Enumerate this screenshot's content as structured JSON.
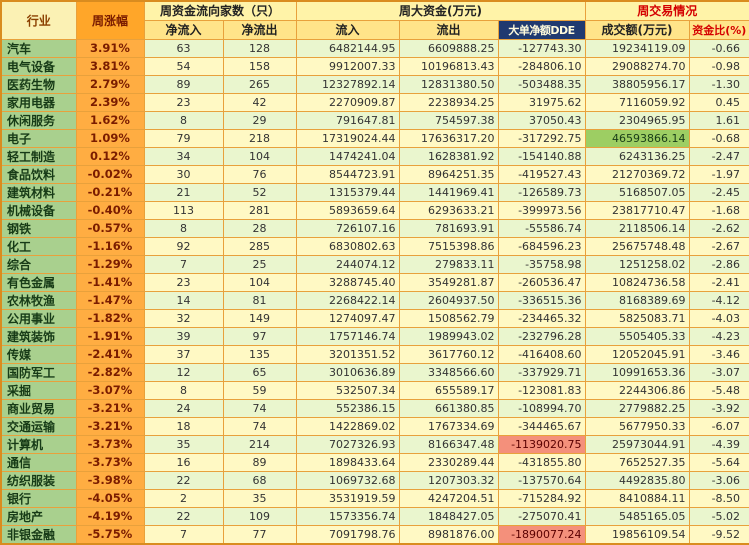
{
  "table": {
    "headers": {
      "industry": "行业",
      "weekly_change": "周涨幅",
      "flow_count_group": "周资金流向家数（只）",
      "net_inflow": "净流入",
      "net_outflow": "净流出",
      "big_money_group": "周大资金(万元)",
      "inflow": "流入",
      "outflow": "流出",
      "dde": "大单净额DDE",
      "trading_group": "周交易情况",
      "turnover": "成交额(万元)",
      "capital_ratio": "资金比(%)"
    },
    "colors": {
      "grid_border": "#E8A13C",
      "weekly_change_column_bg": "#FFAD42",
      "industry_column_bg": "#A9D08E",
      "row_alt_green": "#EAF6CE",
      "row_alt_yellow": "#FFF9C4",
      "dde_header_bg": "#203A70",
      "dde_negative_highlight_bg": "#F4907B",
      "max_turnover_highlight_bg": "#9DCE63"
    },
    "rows": [
      {
        "industry": "汽车",
        "change": "3.91%",
        "net_in": "63",
        "net_out": "128",
        "inflow": "6482144.95",
        "outflow": "6609888.25",
        "dde": "-127743.30",
        "turnover": "19234119.09",
        "ratio": "-0.66"
      },
      {
        "industry": "电气设备",
        "change": "3.81%",
        "net_in": "54",
        "net_out": "158",
        "inflow": "9912007.33",
        "outflow": "10196813.43",
        "dde": "-284806.10",
        "turnover": "29088274.70",
        "ratio": "-0.98"
      },
      {
        "industry": "医药生物",
        "change": "2.79%",
        "net_in": "89",
        "net_out": "265",
        "inflow": "12327892.14",
        "outflow": "12831380.50",
        "dde": "-503488.35",
        "turnover": "38805956.17",
        "ratio": "-1.30"
      },
      {
        "industry": "家用电器",
        "change": "2.39%",
        "net_in": "23",
        "net_out": "42",
        "inflow": "2270909.87",
        "outflow": "2238934.25",
        "dde": "31975.62",
        "turnover": "7116059.92",
        "ratio": "0.45"
      },
      {
        "industry": "休闲服务",
        "change": "1.62%",
        "net_in": "8",
        "net_out": "29",
        "inflow": "791647.81",
        "outflow": "754597.38",
        "dde": "37050.43",
        "turnover": "2304965.95",
        "ratio": "1.61"
      },
      {
        "industry": "电子",
        "change": "1.09%",
        "net_in": "79",
        "net_out": "218",
        "inflow": "17319024.44",
        "outflow": "17636317.20",
        "dde": "-317292.75",
        "turnover": "46593866.14",
        "ratio": "-0.68"
      },
      {
        "industry": "轻工制造",
        "change": "0.12%",
        "net_in": "34",
        "net_out": "104",
        "inflow": "1474241.04",
        "outflow": "1628381.92",
        "dde": "-154140.88",
        "turnover": "6243136.25",
        "ratio": "-2.47"
      },
      {
        "industry": "食品饮料",
        "change": "-0.02%",
        "net_in": "30",
        "net_out": "76",
        "inflow": "8544723.91",
        "outflow": "8964251.35",
        "dde": "-419527.43",
        "turnover": "21270369.72",
        "ratio": "-1.97"
      },
      {
        "industry": "建筑材料",
        "change": "-0.21%",
        "net_in": "21",
        "net_out": "52",
        "inflow": "1315379.44",
        "outflow": "1441969.41",
        "dde": "-126589.73",
        "turnover": "5168507.05",
        "ratio": "-2.45"
      },
      {
        "industry": "机械设备",
        "change": "-0.40%",
        "net_in": "113",
        "net_out": "281",
        "inflow": "5893659.64",
        "outflow": "6293633.21",
        "dde": "-399973.56",
        "turnover": "23817710.47",
        "ratio": "-1.68"
      },
      {
        "industry": "钢铁",
        "change": "-0.57%",
        "net_in": "8",
        "net_out": "28",
        "inflow": "726107.16",
        "outflow": "781693.91",
        "dde": "-55586.74",
        "turnover": "2118506.14",
        "ratio": "-2.62"
      },
      {
        "industry": "化工",
        "change": "-1.16%",
        "net_in": "92",
        "net_out": "285",
        "inflow": "6830802.63",
        "outflow": "7515398.86",
        "dde": "-684596.23",
        "turnover": "25675748.48",
        "ratio": "-2.67"
      },
      {
        "industry": "综合",
        "change": "-1.29%",
        "net_in": "7",
        "net_out": "25",
        "inflow": "244074.12",
        "outflow": "279833.11",
        "dde": "-35758.98",
        "turnover": "1251258.02",
        "ratio": "-2.86"
      },
      {
        "industry": "有色金属",
        "change": "-1.41%",
        "net_in": "23",
        "net_out": "104",
        "inflow": "3288745.40",
        "outflow": "3549281.87",
        "dde": "-260536.47",
        "turnover": "10824736.58",
        "ratio": "-2.41"
      },
      {
        "industry": "农林牧渔",
        "change": "-1.47%",
        "net_in": "14",
        "net_out": "81",
        "inflow": "2268422.14",
        "outflow": "2604937.50",
        "dde": "-336515.36",
        "turnover": "8168389.69",
        "ratio": "-4.12"
      },
      {
        "industry": "公用事业",
        "change": "-1.82%",
        "net_in": "32",
        "net_out": "149",
        "inflow": "1274097.47",
        "outflow": "1508562.79",
        "dde": "-234465.32",
        "turnover": "5825083.71",
        "ratio": "-4.03"
      },
      {
        "industry": "建筑装饰",
        "change": "-1.91%",
        "net_in": "39",
        "net_out": "97",
        "inflow": "1757146.74",
        "outflow": "1989943.02",
        "dde": "-232796.28",
        "turnover": "5505405.33",
        "ratio": "-4.23"
      },
      {
        "industry": "传媒",
        "change": "-2.41%",
        "net_in": "37",
        "net_out": "135",
        "inflow": "3201351.52",
        "outflow": "3617760.12",
        "dde": "-416408.60",
        "turnover": "12052045.91",
        "ratio": "-3.46"
      },
      {
        "industry": "国防军工",
        "change": "-2.82%",
        "net_in": "12",
        "net_out": "65",
        "inflow": "3010636.89",
        "outflow": "3348566.60",
        "dde": "-337929.71",
        "turnover": "10991653.36",
        "ratio": "-3.07"
      },
      {
        "industry": "采掘",
        "change": "-3.07%",
        "net_in": "8",
        "net_out": "59",
        "inflow": "532507.34",
        "outflow": "655589.17",
        "dde": "-123081.83",
        "turnover": "2244306.86",
        "ratio": "-5.48"
      },
      {
        "industry": "商业贸易",
        "change": "-3.21%",
        "net_in": "24",
        "net_out": "74",
        "inflow": "552386.15",
        "outflow": "661380.85",
        "dde": "-108994.70",
        "turnover": "2779882.25",
        "ratio": "-3.92"
      },
      {
        "industry": "交通运输",
        "change": "-3.21%",
        "net_in": "18",
        "net_out": "74",
        "inflow": "1422869.02",
        "outflow": "1767334.69",
        "dde": "-344465.67",
        "turnover": "5677950.33",
        "ratio": "-6.07"
      },
      {
        "industry": "计算机",
        "change": "-3.73%",
        "net_in": "35",
        "net_out": "214",
        "inflow": "7027326.93",
        "outflow": "8166347.48",
        "dde": "-1139020.75",
        "turnover": "25973044.91",
        "ratio": "-4.39"
      },
      {
        "industry": "通信",
        "change": "-3.73%",
        "net_in": "16",
        "net_out": "89",
        "inflow": "1898433.64",
        "outflow": "2330289.44",
        "dde": "-431855.80",
        "turnover": "7652527.35",
        "ratio": "-5.64"
      },
      {
        "industry": "纺织服装",
        "change": "-3.98%",
        "net_in": "22",
        "net_out": "68",
        "inflow": "1069732.68",
        "outflow": "1207303.32",
        "dde": "-137570.64",
        "turnover": "4492835.80",
        "ratio": "-3.06"
      },
      {
        "industry": "银行",
        "change": "-4.05%",
        "net_in": "2",
        "net_out": "35",
        "inflow": "3531919.59",
        "outflow": "4247204.51",
        "dde": "-715284.92",
        "turnover": "8410884.11",
        "ratio": "-8.50"
      },
      {
        "industry": "房地产",
        "change": "-4.19%",
        "net_in": "22",
        "net_out": "109",
        "inflow": "1573356.74",
        "outflow": "1848427.05",
        "dde": "-275070.41",
        "turnover": "5485165.05",
        "ratio": "-5.02"
      },
      {
        "industry": "非银金融",
        "change": "-5.75%",
        "net_in": "7",
        "net_out": "77",
        "inflow": "7091798.76",
        "outflow": "8981876.00",
        "dde": "-1890077.24",
        "turnover": "19856109.54",
        "ratio": "-9.52"
      }
    ]
  }
}
